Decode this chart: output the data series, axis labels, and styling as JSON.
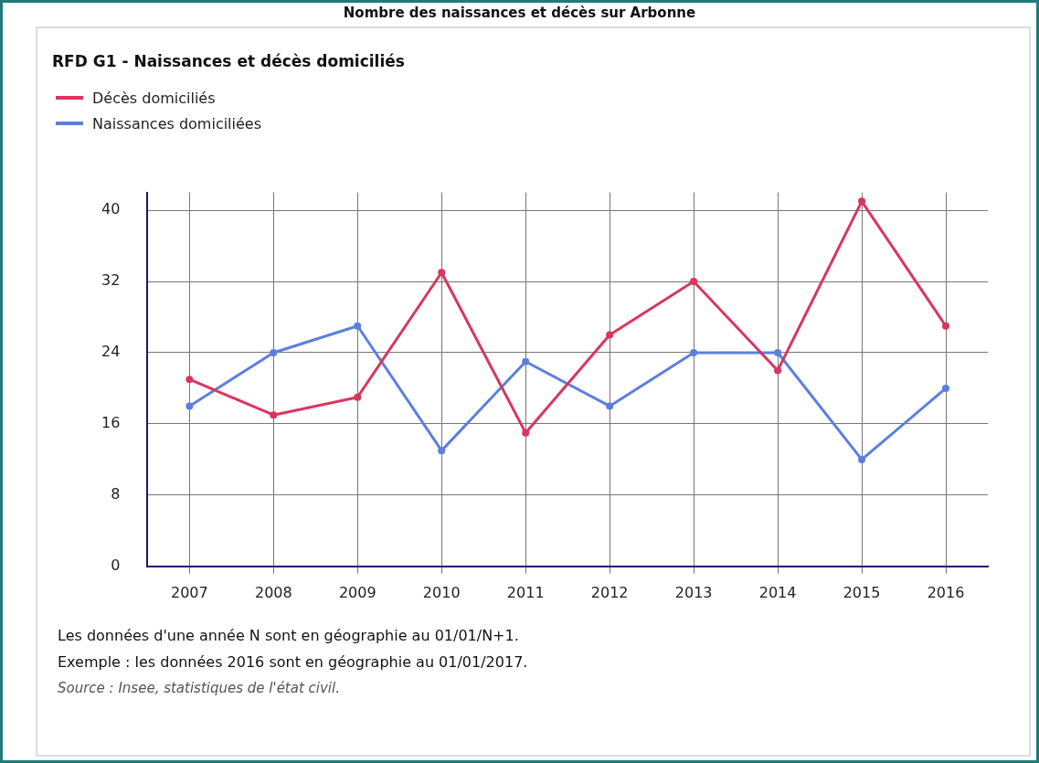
{
  "chart_data": {
    "type": "line",
    "title": "Nombre des naissances et décès sur Arbonne",
    "subtitle": "RFD G1 - Naissances et décès domiciliés",
    "categories": [
      "2007",
      "2008",
      "2009",
      "2010",
      "2011",
      "2012",
      "2013",
      "2014",
      "2015",
      "2016"
    ],
    "series": [
      {
        "name": "Décès domiciliés",
        "color": "#d9365e",
        "values": [
          21,
          17,
          19,
          33,
          15,
          26,
          32,
          22,
          41,
          27
        ]
      },
      {
        "name": "Naissances domiciliées",
        "color": "#5b7fdc",
        "values": [
          18,
          24,
          27,
          13,
          23,
          18,
          24,
          24,
          12,
          20
        ]
      }
    ],
    "ylim": [
      0,
      42
    ],
    "yticks": [
      0,
      8,
      16,
      24,
      32,
      40
    ],
    "grid": true,
    "legend": "top left",
    "marker": "circle",
    "line_style": "solid",
    "annotations": [
      "Les données d'une année N sont en géographie au 01/01/N+1.",
      "Exemple : les données 2016 sont en géographie au 01/01/2017.",
      "Source : Insee, statistiques de l'état civil."
    ]
  }
}
